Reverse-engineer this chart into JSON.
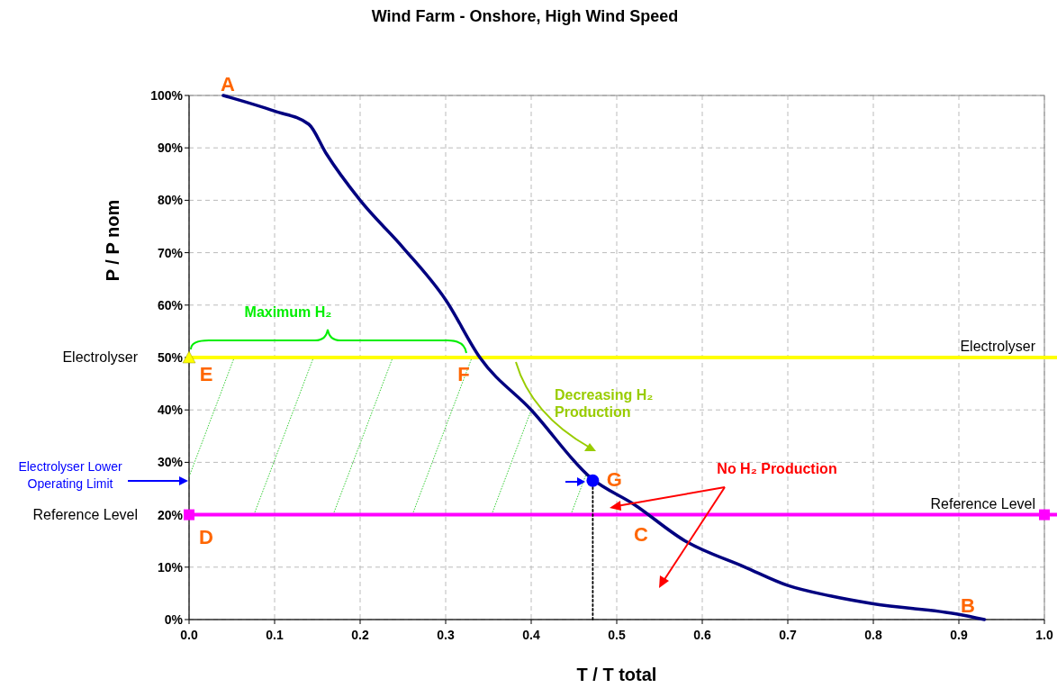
{
  "chart_data": {
    "type": "line",
    "title": "Wind Farm - Onshore, High Wind Speed",
    "xlabel": "T / T total",
    "ylabel": "P / P nom",
    "xlim": [
      0,
      1
    ],
    "ylim": [
      0,
      100
    ],
    "xticks": [
      {
        "value": 0,
        "label": "0.0"
      },
      0.1,
      0.2,
      0.3,
      0.4,
      0.5,
      0.6,
      0.7,
      0.8,
      0.9,
      {
        "value": 1,
        "label": "1.0"
      }
    ],
    "yticks": [
      {
        "value": 0,
        "label": "0%"
      },
      {
        "value": 10,
        "label": "10%"
      },
      {
        "value": 20,
        "label": "20%"
      },
      {
        "value": 30,
        "label": "30%"
      },
      {
        "value": 40,
        "label": "40%"
      },
      {
        "value": 50,
        "label": "50%"
      },
      {
        "value": 60,
        "label": "60%"
      },
      {
        "value": 70,
        "label": "70%"
      },
      {
        "value": 80,
        "label": "80%"
      },
      {
        "value": 90,
        "label": "90%"
      },
      {
        "value": 100,
        "label": "100%"
      }
    ],
    "grid": true,
    "series": [
      {
        "type": "line",
        "color": "#000080",
        "x": [
          0.04,
          0.1,
          0.14,
          0.16,
          0.2,
          0.25,
          0.3,
          0.34,
          0.4,
          0.47,
          0.52,
          0.58,
          0.65,
          0.7,
          0.75,
          0.8,
          0.9,
          0.93
        ],
        "values": [
          100,
          97,
          94.5,
          89,
          80,
          71,
          61,
          50,
          40,
          27,
          22,
          15,
          10,
          6.5,
          4.5,
          3,
          1,
          0
        ]
      },
      {
        "type": "line",
        "color": "#000000",
        "line_style": "dotted",
        "x": [
          0.472,
          0.472
        ],
        "values": [
          0,
          26.5
        ]
      },
      {
        "type": "scatter",
        "color": "#0000ff",
        "marker": "circle",
        "x": [
          0.472
        ],
        "values": [
          26.5
        ]
      },
      {
        "type": "scatter",
        "color": "#ffff00",
        "marker": "triangle",
        "x": [
          0
        ],
        "values": [
          50
        ]
      },
      {
        "type": "scatter",
        "color": "#ff00ff",
        "marker": "square",
        "x": [
          0,
          1
        ],
        "values": [
          20,
          20
        ]
      }
    ],
    "ref_lines": [
      {
        "axis": "y",
        "value": 50,
        "label": "Electrolyser",
        "color": "#ffff00"
      },
      {
        "axis": "y",
        "value": 20,
        "label": "Reference Level",
        "color": "#ff00ff"
      }
    ],
    "annotations": [
      "Maximum H₂",
      "Decreasing H₂ Production",
      "No H₂ Production",
      "Electrolyser Lower Operating Limit",
      "A",
      "B",
      "C",
      "D",
      {
        "text": "E",
        "x": 0,
        "y": 50
      },
      {
        "text": "F",
        "x": 0.34,
        "y": 50
      },
      {
        "text": "G",
        "x": 0.472,
        "y": 26.5
      }
    ]
  }
}
